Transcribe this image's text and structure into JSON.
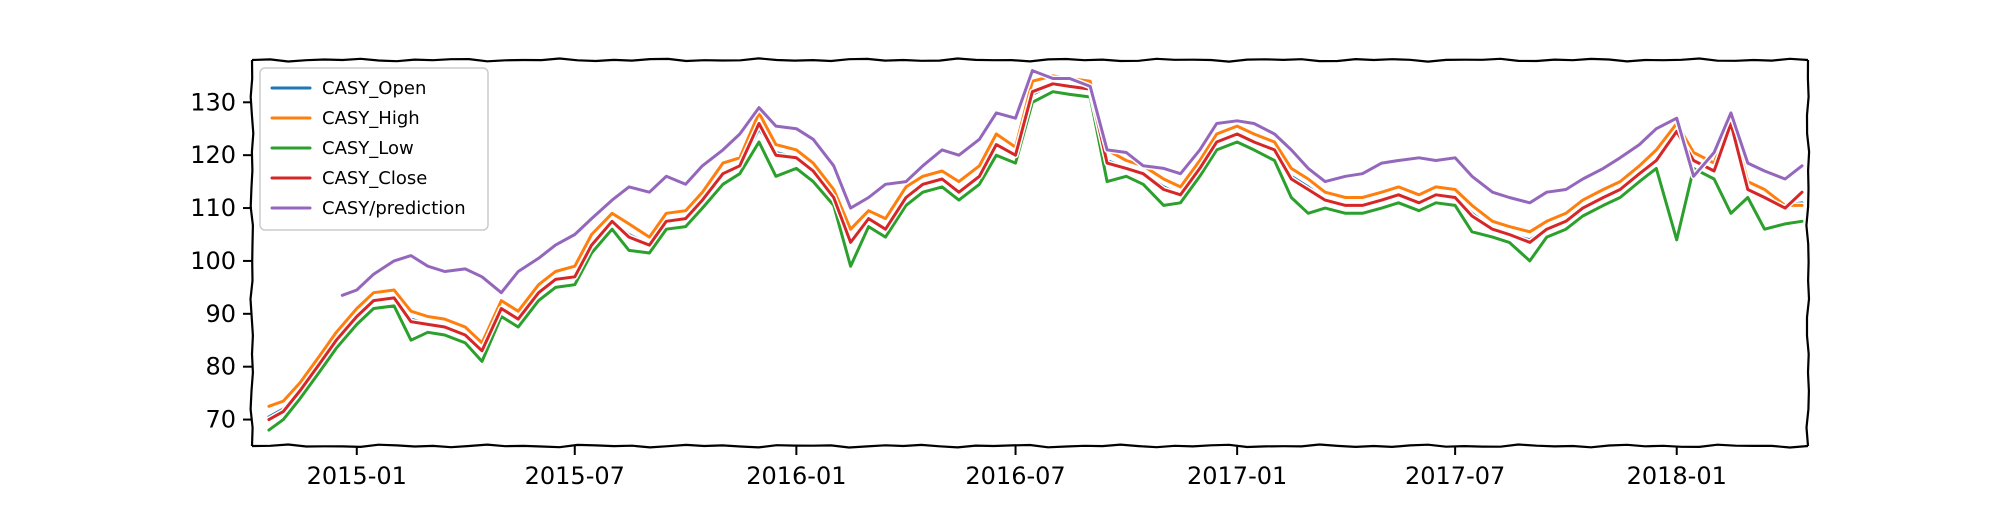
{
  "chart_data": {
    "type": "line",
    "title": "",
    "xlabel": "",
    "ylabel": "",
    "grid": false,
    "legend_position": "top-left",
    "xlim": [
      "2014-10-06",
      "2018-04-20"
    ],
    "ylim": [
      65,
      138
    ],
    "x_ticks": [
      "2015-01",
      "2015-07",
      "2016-01",
      "2016-07",
      "2017-01",
      "2017-07",
      "2018-01"
    ],
    "y_ticks": [
      70,
      80,
      90,
      100,
      110,
      120,
      130
    ],
    "series": [
      {
        "name": "CASY_Open",
        "color": "#1f77b4",
        "x": [
          "2014-10-20",
          "2014-11-01",
          "2014-11-15",
          "2014-12-01",
          "2014-12-15",
          "2015-01-01",
          "2015-01-15",
          "2015-02-01",
          "2015-02-15",
          "2015-03-01",
          "2015-03-15",
          "2015-04-01",
          "2015-04-15",
          "2015-05-01",
          "2015-05-15",
          "2015-06-01",
          "2015-06-15",
          "2015-07-01",
          "2015-07-15",
          "2015-08-01",
          "2015-08-15",
          "2015-09-01",
          "2015-09-15",
          "2015-10-01",
          "2015-10-15",
          "2015-11-01",
          "2015-11-15",
          "2015-12-01",
          "2015-12-15",
          "2016-01-01",
          "2016-01-15",
          "2016-02-01",
          "2016-02-15",
          "2016-03-01",
          "2016-03-15",
          "2016-04-01",
          "2016-04-15",
          "2016-05-01",
          "2016-05-15",
          "2016-06-01",
          "2016-06-15",
          "2016-07-01",
          "2016-07-15",
          "2016-08-01",
          "2016-08-15",
          "2016-09-01",
          "2016-09-15",
          "2016-10-01",
          "2016-10-15",
          "2016-11-01",
          "2016-11-15",
          "2016-12-01",
          "2016-12-15",
          "2017-01-01",
          "2017-01-15",
          "2017-02-01",
          "2017-02-15",
          "2017-03-01",
          "2017-03-15",
          "2017-04-01",
          "2017-04-15",
          "2017-05-01",
          "2017-05-15",
          "2017-06-01",
          "2017-06-15",
          "2017-07-01",
          "2017-07-15",
          "2017-08-01",
          "2017-08-15",
          "2017-09-01",
          "2017-09-15",
          "2017-10-01",
          "2017-10-15",
          "2017-11-01",
          "2017-11-15",
          "2017-12-01",
          "2017-12-15",
          "2018-01-01",
          "2018-01-15",
          "2018-02-01",
          "2018-02-15",
          "2018-03-01",
          "2018-03-15",
          "2018-04-01",
          "2018-04-15"
        ],
        "values": [
          70.5,
          72,
          75.5,
          80.5,
          85,
          89.5,
          92.5,
          93,
          89,
          88,
          87.5,
          86,
          83,
          91,
          89,
          94,
          96.5,
          97,
          103,
          107.5,
          105,
          103,
          107.5,
          108,
          111.5,
          116.5,
          118,
          125,
          120.5,
          119.5,
          117,
          112,
          104,
          108,
          106,
          112,
          114.5,
          115.5,
          113,
          116,
          122,
          120,
          131.5,
          133.5,
          133,
          132.5,
          119,
          117.5,
          116.5,
          114,
          112.5,
          117.5,
          122.5,
          124,
          122.5,
          121,
          116,
          114,
          111.5,
          110.5,
          110.5,
          111.5,
          112.5,
          111,
          112.5,
          112,
          109,
          106,
          105,
          104,
          106,
          107.5,
          110,
          112,
          113.5,
          116.5,
          119,
          124,
          119,
          117,
          125,
          113.5,
          112,
          110.5,
          111
        ]
      },
      {
        "name": "CASY_High",
        "color": "#ff7f0e",
        "x": [
          "2014-10-20",
          "2014-11-01",
          "2014-11-15",
          "2014-12-01",
          "2014-12-15",
          "2015-01-01",
          "2015-01-15",
          "2015-02-01",
          "2015-02-15",
          "2015-03-01",
          "2015-03-15",
          "2015-04-01",
          "2015-04-15",
          "2015-05-01",
          "2015-05-15",
          "2015-06-01",
          "2015-06-15",
          "2015-07-01",
          "2015-07-15",
          "2015-08-01",
          "2015-08-15",
          "2015-09-01",
          "2015-09-15",
          "2015-10-01",
          "2015-10-15",
          "2015-11-01",
          "2015-11-15",
          "2015-12-01",
          "2015-12-15",
          "2016-01-01",
          "2016-01-15",
          "2016-02-01",
          "2016-02-15",
          "2016-03-01",
          "2016-03-15",
          "2016-04-01",
          "2016-04-15",
          "2016-05-01",
          "2016-05-15",
          "2016-06-01",
          "2016-06-15",
          "2016-07-01",
          "2016-07-15",
          "2016-08-01",
          "2016-08-15",
          "2016-09-01",
          "2016-09-15",
          "2016-10-01",
          "2016-10-15",
          "2016-11-01",
          "2016-11-15",
          "2016-12-01",
          "2016-12-15",
          "2017-01-01",
          "2017-01-15",
          "2017-02-01",
          "2017-02-15",
          "2017-03-01",
          "2017-03-15",
          "2017-04-01",
          "2017-04-15",
          "2017-05-01",
          "2017-05-15",
          "2017-06-01",
          "2017-06-15",
          "2017-07-01",
          "2017-07-15",
          "2017-08-01",
          "2017-08-15",
          "2017-09-01",
          "2017-09-15",
          "2017-10-01",
          "2017-10-15",
          "2017-11-01",
          "2017-11-15",
          "2017-12-01",
          "2017-12-15",
          "2018-01-01",
          "2018-01-15",
          "2018-02-01",
          "2018-02-15",
          "2018-03-01",
          "2018-03-15",
          "2018-04-01",
          "2018-04-15"
        ],
        "values": [
          72.5,
          73.5,
          77,
          82,
          86.5,
          91,
          94,
          94.5,
          90.5,
          89.5,
          89,
          87.5,
          84.5,
          92.5,
          90.5,
          95.5,
          98,
          99,
          105,
          109,
          107,
          104.5,
          109,
          109.5,
          113,
          118.5,
          119.5,
          128,
          122,
          121,
          118.5,
          113.5,
          106,
          109.5,
          108,
          114,
          116,
          117,
          115,
          118,
          124,
          121.5,
          134,
          135,
          134.5,
          134,
          121,
          119,
          118,
          115.5,
          114,
          119,
          124,
          125.5,
          124,
          122.5,
          117.5,
          115.5,
          113,
          112,
          112,
          113,
          114,
          112.5,
          114,
          113.5,
          110.5,
          107.5,
          106.5,
          105.5,
          107.5,
          109,
          111.5,
          113.5,
          115,
          118,
          121,
          126,
          120.5,
          118.5,
          127,
          115,
          113.5,
          110.5,
          110.5
        ]
      },
      {
        "name": "CASY_Low",
        "color": "#2ca02c",
        "x": [
          "2014-10-20",
          "2014-11-01",
          "2014-11-15",
          "2014-12-01",
          "2014-12-15",
          "2015-01-01",
          "2015-01-15",
          "2015-02-01",
          "2015-02-15",
          "2015-03-01",
          "2015-03-15",
          "2015-04-01",
          "2015-04-15",
          "2015-05-01",
          "2015-05-15",
          "2015-06-01",
          "2015-06-15",
          "2015-07-01",
          "2015-07-15",
          "2015-08-01",
          "2015-08-15",
          "2015-09-01",
          "2015-09-15",
          "2015-10-01",
          "2015-10-15",
          "2015-11-01",
          "2015-11-15",
          "2015-12-01",
          "2015-12-15",
          "2016-01-01",
          "2016-01-15",
          "2016-02-01",
          "2016-02-15",
          "2016-03-01",
          "2016-03-15",
          "2016-04-01",
          "2016-04-15",
          "2016-05-01",
          "2016-05-15",
          "2016-06-01",
          "2016-06-15",
          "2016-07-01",
          "2016-07-15",
          "2016-08-01",
          "2016-08-15",
          "2016-09-01",
          "2016-09-15",
          "2016-10-01",
          "2016-10-15",
          "2016-11-01",
          "2016-11-15",
          "2016-12-01",
          "2016-12-15",
          "2017-01-01",
          "2017-01-15",
          "2017-02-01",
          "2017-02-15",
          "2017-03-01",
          "2017-03-15",
          "2017-04-01",
          "2017-04-15",
          "2017-05-01",
          "2017-05-15",
          "2017-06-01",
          "2017-06-15",
          "2017-07-01",
          "2017-07-15",
          "2017-08-01",
          "2017-08-15",
          "2017-09-01",
          "2017-09-15",
          "2017-10-01",
          "2017-10-15",
          "2017-11-01",
          "2017-11-15",
          "2017-12-01",
          "2017-12-15",
          "2018-01-01",
          "2018-01-15",
          "2018-02-01",
          "2018-02-15",
          "2018-03-01",
          "2018-03-15",
          "2018-04-01",
          "2018-04-15"
        ],
        "values": [
          68,
          70,
          74,
          79,
          83.5,
          88,
          91,
          91.5,
          85,
          86.5,
          86,
          84.5,
          81,
          89.5,
          87.5,
          92.5,
          95,
          95.5,
          101.5,
          106,
          102,
          101.5,
          106,
          106.5,
          110,
          114.5,
          116.5,
          122.5,
          116,
          117.5,
          115,
          110.5,
          99,
          106.5,
          104.5,
          110.5,
          113,
          114,
          111.5,
          114.5,
          120,
          118.5,
          130,
          132,
          131.5,
          131,
          115,
          116,
          114.5,
          110.5,
          111,
          116,
          121,
          122.5,
          121,
          119,
          112,
          109,
          110,
          109,
          109,
          110,
          111,
          109.5,
          111,
          110.5,
          105.5,
          104.5,
          103.5,
          100,
          104.5,
          106,
          108.5,
          110.5,
          112,
          115,
          117.5,
          104,
          117.5,
          115.5,
          109,
          112,
          106,
          107,
          107.5
        ]
      },
      {
        "name": "CASY_Close",
        "color": "#d62728",
        "x": [
          "2014-10-20",
          "2014-11-01",
          "2014-11-15",
          "2014-12-01",
          "2014-12-15",
          "2015-01-01",
          "2015-01-15",
          "2015-02-01",
          "2015-02-15",
          "2015-03-01",
          "2015-03-15",
          "2015-04-01",
          "2015-04-15",
          "2015-05-01",
          "2015-05-15",
          "2015-06-01",
          "2015-06-15",
          "2015-07-01",
          "2015-07-15",
          "2015-08-01",
          "2015-08-15",
          "2015-09-01",
          "2015-09-15",
          "2015-10-01",
          "2015-10-15",
          "2015-11-01",
          "2015-11-15",
          "2015-12-01",
          "2015-12-15",
          "2016-01-01",
          "2016-01-15",
          "2016-02-01",
          "2016-02-15",
          "2016-03-01",
          "2016-03-15",
          "2016-04-01",
          "2016-04-15",
          "2016-05-01",
          "2016-05-15",
          "2016-06-01",
          "2016-06-15",
          "2016-07-01",
          "2016-07-15",
          "2016-08-01",
          "2016-08-15",
          "2016-09-01",
          "2016-09-15",
          "2016-10-01",
          "2016-10-15",
          "2016-11-01",
          "2016-11-15",
          "2016-12-01",
          "2016-12-15",
          "2017-01-01",
          "2017-01-15",
          "2017-02-01",
          "2017-02-15",
          "2017-03-01",
          "2017-03-15",
          "2017-04-01",
          "2017-04-15",
          "2017-05-01",
          "2017-05-15",
          "2017-06-01",
          "2017-06-15",
          "2017-07-01",
          "2017-07-15",
          "2017-08-01",
          "2017-08-15",
          "2017-09-01",
          "2017-09-15",
          "2017-10-01",
          "2017-10-15",
          "2017-11-01",
          "2017-11-15",
          "2017-12-01",
          "2017-12-15",
          "2018-01-01",
          "2018-01-15",
          "2018-02-01",
          "2018-02-15",
          "2018-03-01",
          "2018-03-15",
          "2018-04-01",
          "2018-04-15"
        ],
        "values": [
          70,
          71.5,
          75.5,
          80.5,
          85,
          89.5,
          92.5,
          93,
          88.5,
          88,
          87.5,
          86,
          83,
          91,
          89,
          94,
          96.5,
          97,
          103,
          107.5,
          104.5,
          103,
          107.5,
          108,
          111.5,
          116.5,
          118,
          126,
          120,
          119.5,
          117,
          112,
          103.5,
          108,
          106,
          112,
          114.5,
          115.5,
          113,
          116,
          122,
          120,
          132,
          133.5,
          133,
          132.5,
          118.5,
          117.5,
          116.5,
          113.5,
          112.5,
          117.5,
          122.5,
          124,
          122.5,
          121,
          115.5,
          113.5,
          111.5,
          110.5,
          110.5,
          111.5,
          112.5,
          111,
          112.5,
          112,
          108.5,
          106,
          105,
          103.5,
          106,
          107.5,
          110,
          112,
          113.5,
          116.5,
          119,
          124.5,
          119,
          117,
          126,
          113.5,
          112,
          110,
          113
        ]
      },
      {
        "name": "CASY/prediction",
        "color": "#9467bd",
        "x": [
          "2014-12-20",
          "2015-01-01",
          "2015-01-15",
          "2015-02-01",
          "2015-02-15",
          "2015-03-01",
          "2015-03-15",
          "2015-04-01",
          "2015-04-15",
          "2015-05-01",
          "2015-05-15",
          "2015-06-01",
          "2015-06-15",
          "2015-07-01",
          "2015-07-15",
          "2015-08-01",
          "2015-08-15",
          "2015-09-01",
          "2015-09-15",
          "2015-10-01",
          "2015-10-15",
          "2015-11-01",
          "2015-11-15",
          "2015-12-01",
          "2015-12-15",
          "2016-01-01",
          "2016-01-15",
          "2016-02-01",
          "2016-02-15",
          "2016-03-01",
          "2016-03-15",
          "2016-04-01",
          "2016-04-15",
          "2016-05-01",
          "2016-05-15",
          "2016-06-01",
          "2016-06-15",
          "2016-07-01",
          "2016-07-15",
          "2016-08-01",
          "2016-08-15",
          "2016-09-01",
          "2016-09-15",
          "2016-10-01",
          "2016-10-15",
          "2016-11-01",
          "2016-11-15",
          "2016-12-01",
          "2016-12-15",
          "2017-01-01",
          "2017-01-15",
          "2017-02-01",
          "2017-02-15",
          "2017-03-01",
          "2017-03-15",
          "2017-04-01",
          "2017-04-15",
          "2017-05-01",
          "2017-05-15",
          "2017-06-01",
          "2017-06-15",
          "2017-07-01",
          "2017-07-15",
          "2017-08-01",
          "2017-08-15",
          "2017-09-01",
          "2017-09-15",
          "2017-10-01",
          "2017-10-15",
          "2017-11-01",
          "2017-11-15",
          "2017-12-01",
          "2017-12-15",
          "2018-01-01",
          "2018-01-15",
          "2018-02-01",
          "2018-02-15",
          "2018-03-01",
          "2018-03-15",
          "2018-04-01",
          "2018-04-15"
        ],
        "values": [
          93.5,
          94.5,
          97.5,
          100,
          101,
          99,
          98,
          98.5,
          97,
          94,
          98,
          100.5,
          103,
          105,
          108,
          111.5,
          114,
          113,
          116,
          114.5,
          118,
          121,
          124,
          129,
          125.5,
          125,
          123,
          118,
          110,
          112,
          114.5,
          115,
          118,
          121,
          120,
          123,
          128,
          127,
          136,
          134.5,
          134.5,
          133,
          121,
          120.5,
          118,
          117.5,
          116.5,
          121,
          126,
          126.5,
          126,
          124,
          121,
          117.5,
          115,
          116,
          116.5,
          118.5,
          119,
          119.5,
          119,
          119.5,
          116,
          113,
          112,
          111,
          113,
          113.5,
          115.5,
          117.5,
          119.5,
          122,
          125,
          127,
          116,
          120.5,
          128,
          118.5,
          117,
          115.5,
          118
        ]
      }
    ]
  }
}
